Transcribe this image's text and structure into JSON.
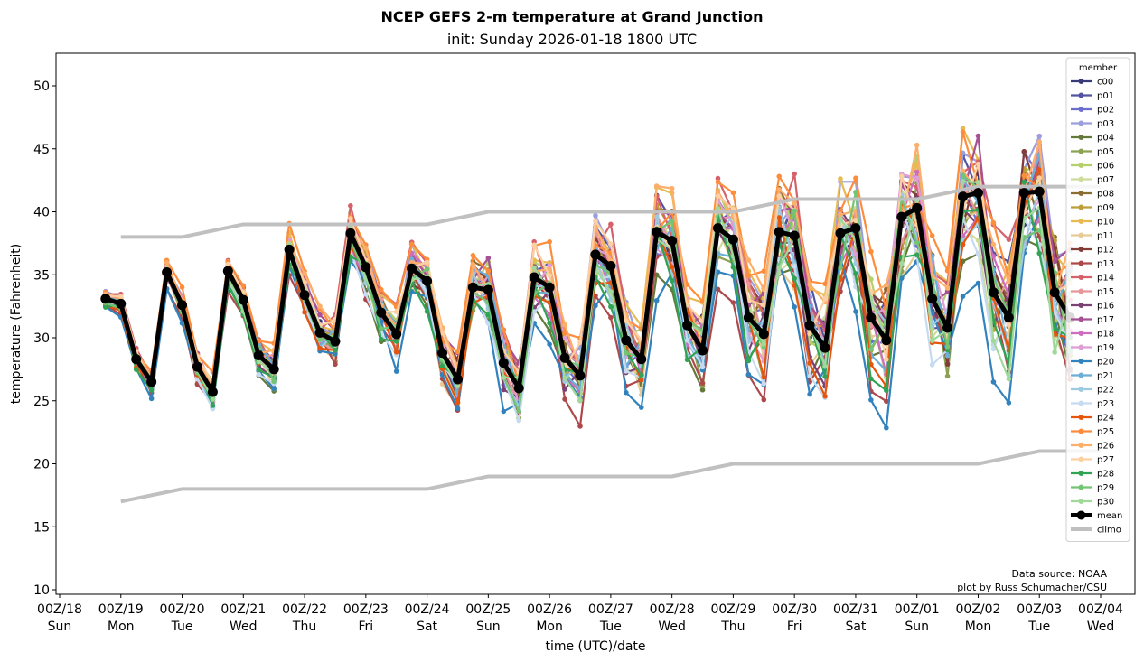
{
  "chart_data": {
    "type": "line",
    "title": "NCEP GEFS 2-m temperature at Grand Junction",
    "subtitle": "init: Sunday 2026-01-18 1800 UTC",
    "xlabel": "time (UTC)/date",
    "ylabel": "temperature (Fahrenheit)",
    "ylim": [
      9.6,
      52.5
    ],
    "yticks": [
      10,
      15,
      20,
      25,
      30,
      35,
      40,
      45,
      50
    ],
    "xlim_days": [
      -0.03,
      17.56
    ],
    "xticks": [
      {
        "top": "00Z/18",
        "bottom": "Sun"
      },
      {
        "top": "00Z/19",
        "bottom": "Mon"
      },
      {
        "top": "00Z/20",
        "bottom": "Tue"
      },
      {
        "top": "00Z/21",
        "bottom": "Wed"
      },
      {
        "top": "00Z/22",
        "bottom": "Thu"
      },
      {
        "top": "00Z/23",
        "bottom": "Fri"
      },
      {
        "top": "00Z/24",
        "bottom": "Sat"
      },
      {
        "top": "00Z/25",
        "bottom": "Sun"
      },
      {
        "top": "00Z/26",
        "bottom": "Mon"
      },
      {
        "top": "00Z/27",
        "bottom": "Tue"
      },
      {
        "top": "00Z/28",
        "bottom": "Wed"
      },
      {
        "top": "00Z/29",
        "bottom": "Thu"
      },
      {
        "top": "00Z/30",
        "bottom": "Fri"
      },
      {
        "top": "00Z/31",
        "bottom": "Sat"
      },
      {
        "top": "00Z/01",
        "bottom": "Sun"
      },
      {
        "top": "00Z/02",
        "bottom": "Mon"
      },
      {
        "top": "00Z/03",
        "bottom": "Tue"
      },
      {
        "top": "00Z/04",
        "bottom": "Wed"
      }
    ],
    "grid": false,
    "legend": {
      "title": "member",
      "placement": "right"
    },
    "time_start_days": 0.75,
    "time_step_hours": 6,
    "mean": {
      "name": "mean",
      "color": "#000000",
      "values": [
        33.1,
        32.7,
        28.3,
        26.5,
        35.2,
        32.6,
        27.7,
        25.7,
        35.3,
        33.0,
        28.6,
        27.5,
        37.0,
        33.4,
        30.4,
        29.7,
        38.3,
        35.6,
        32.0,
        30.3,
        35.5,
        34.5,
        28.8,
        26.7,
        34.0,
        33.8,
        28.0,
        26.0,
        34.8,
        34.0,
        28.4,
        27.0,
        36.6,
        35.7,
        29.8,
        28.3,
        38.4,
        37.7,
        31.0,
        29.0,
        38.7,
        37.8,
        31.6,
        30.3,
        38.4,
        38.1,
        31.0,
        29.2,
        38.3,
        38.7,
        31.6,
        29.8,
        39.6,
        40.3,
        33.1,
        30.8,
        41.2,
        41.5,
        33.6,
        31.6,
        41.5,
        41.6,
        33.6,
        31.6
      ]
    },
    "climo": {
      "name": "climo",
      "color": "#c0c0c0",
      "x_days": [
        1,
        2,
        3,
        4,
        5,
        6,
        7,
        8,
        9,
        10,
        11,
        12,
        13,
        14,
        15,
        16,
        17
      ],
      "upper": [
        38,
        38,
        39,
        39,
        39,
        39,
        40,
        40,
        40,
        40,
        40,
        41,
        41,
        41,
        42,
        42,
        42
      ],
      "lower": [
        17,
        18,
        18,
        18,
        18,
        18,
        19,
        19,
        19,
        19,
        20,
        20,
        20,
        20,
        20,
        21,
        21
      ]
    },
    "members": [
      {
        "name": "c00",
        "color": "#393b79",
        "offset": 0.4,
        "phase": 0
      },
      {
        "name": "p01",
        "color": "#5254a3",
        "offset": 0.8,
        "phase": 1
      },
      {
        "name": "p02",
        "color": "#6b6ecf",
        "offset": -0.3,
        "phase": 2
      },
      {
        "name": "p03",
        "color": "#9c9ede",
        "offset": 1.6,
        "phase": 3
      },
      {
        "name": "p04",
        "color": "#637939",
        "offset": -2.4,
        "phase": 4
      },
      {
        "name": "p05",
        "color": "#8ca252",
        "offset": -1.2,
        "phase": 5
      },
      {
        "name": "p06",
        "color": "#b5cf6b",
        "offset": 0.9,
        "phase": 6
      },
      {
        "name": "p07",
        "color": "#cedb9c",
        "offset": -0.6,
        "phase": 7
      },
      {
        "name": "p08",
        "color": "#8c6d31",
        "offset": 1.1,
        "phase": 8
      },
      {
        "name": "p09",
        "color": "#bd9e39",
        "offset": 0.5,
        "phase": 9
      },
      {
        "name": "p10",
        "color": "#e7ba52",
        "offset": 1.9,
        "phase": 10
      },
      {
        "name": "p11",
        "color": "#e7cb94",
        "offset": -1.8,
        "phase": 11
      },
      {
        "name": "p12",
        "color": "#843c39",
        "offset": 0.2,
        "phase": 12
      },
      {
        "name": "p13",
        "color": "#ad494a",
        "offset": -2.9,
        "phase": 13
      },
      {
        "name": "p14",
        "color": "#d6616b",
        "offset": 2.3,
        "phase": 14
      },
      {
        "name": "p15",
        "color": "#e7969c",
        "offset": 0.7,
        "phase": 15
      },
      {
        "name": "p16",
        "color": "#7b4173",
        "offset": -0.9,
        "phase": 16
      },
      {
        "name": "p17",
        "color": "#a55194",
        "offset": 1.4,
        "phase": 17
      },
      {
        "name": "p18",
        "color": "#ce6dbd",
        "offset": -0.4,
        "phase": 18
      },
      {
        "name": "p19",
        "color": "#de9ed6",
        "offset": 0.3,
        "phase": 19
      },
      {
        "name": "p20",
        "color": "#3182bd",
        "offset": -4.2,
        "phase": 20
      },
      {
        "name": "p21",
        "color": "#6baed6",
        "offset": 0.1,
        "phase": 21
      },
      {
        "name": "p22",
        "color": "#9ecae1",
        "offset": -0.7,
        "phase": 22
      },
      {
        "name": "p23",
        "color": "#c6dbef",
        "offset": -2.1,
        "phase": 23
      },
      {
        "name": "p24",
        "color": "#e6550d",
        "offset": -1.5,
        "phase": 24
      },
      {
        "name": "p25",
        "color": "#fd8d3c",
        "offset": 3.1,
        "phase": 25
      },
      {
        "name": "p26",
        "color": "#fdae6b",
        "offset": 2.6,
        "phase": 26
      },
      {
        "name": "p27",
        "color": "#fdd0a2",
        "offset": 1.2,
        "phase": 27
      },
      {
        "name": "p28",
        "color": "#31a354",
        "offset": -1.9,
        "phase": 28
      },
      {
        "name": "p29",
        "color": "#74c476",
        "offset": -0.2,
        "phase": 29
      },
      {
        "name": "p30",
        "color": "#a1d99b",
        "offset": -1.1,
        "phase": 30
      }
    ],
    "annotations": [
      "Data source: NOAA",
      "plot by Russ Schumacher/CSU"
    ]
  }
}
